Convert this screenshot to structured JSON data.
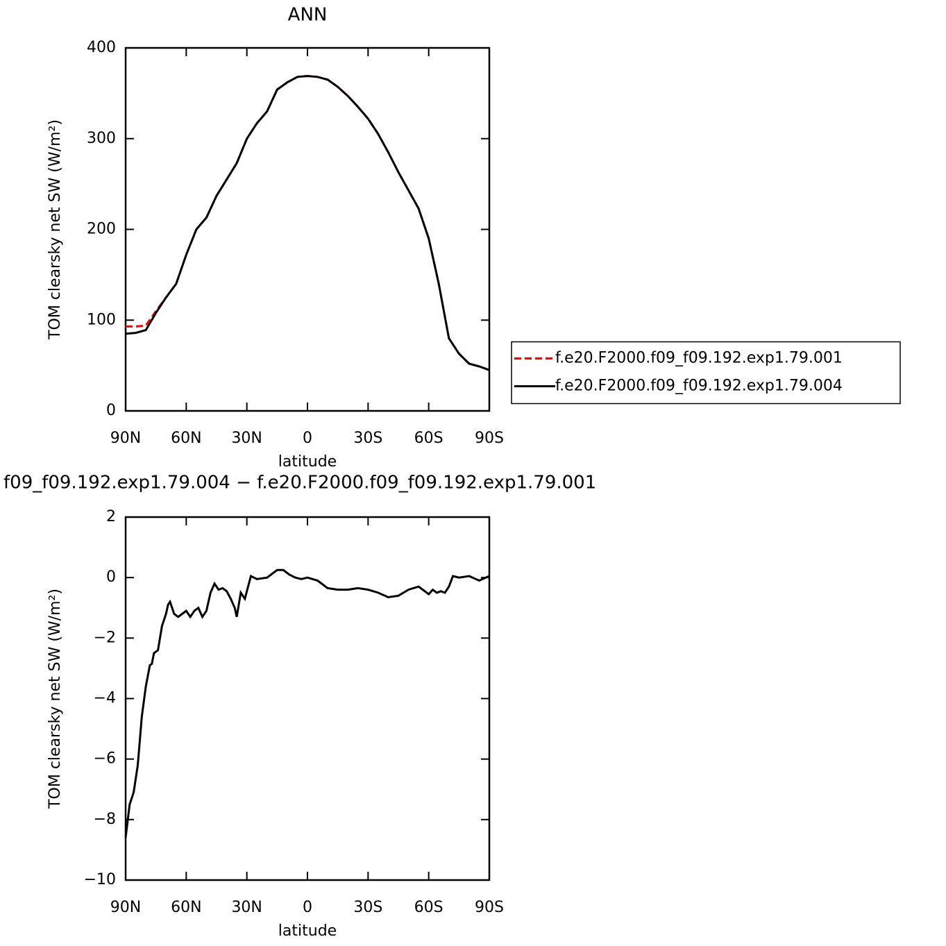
{
  "chart_data": [
    {
      "type": "line",
      "title": "ANN",
      "x_label": "latitude",
      "y_label": "TOM clearsky net SW (W/m²)",
      "x": [
        90,
        85,
        80,
        75,
        70,
        65,
        60,
        55,
        50,
        45,
        40,
        35,
        30,
        25,
        20,
        15,
        10,
        5,
        0,
        -5,
        -10,
        -15,
        -20,
        -25,
        -30,
        -35,
        -40,
        -45,
        -50,
        -55,
        -60,
        -65,
        -70,
        -75,
        -80,
        -85,
        -90
      ],
      "xlim": [
        90,
        -90
      ],
      "xticks": [
        {
          "value": 90,
          "label": "90N"
        },
        {
          "value": 60,
          "label": "60N"
        },
        {
          "value": 30,
          "label": "30N"
        },
        0,
        {
          "value": -30,
          "label": "30S"
        },
        {
          "value": -60,
          "label": "60S"
        },
        {
          "value": -90,
          "label": "90S"
        }
      ],
      "ylim": [
        0,
        400
      ],
      "yticks": [
        0,
        100,
        200,
        300,
        400
      ],
      "legend": "right",
      "series": [
        {
          "name": "f.e20.F2000.f09_f09.192.exp1.79.001",
          "color": "#ff0000",
          "dash": "dashed",
          "values": [
            93,
            93,
            94,
            110,
            125,
            140,
            172,
            200,
            213,
            237,
            255,
            273,
            300,
            317,
            330,
            354,
            362,
            368,
            369,
            368,
            365,
            357,
            347,
            335,
            322,
            305,
            285,
            263,
            243,
            223,
            190,
            140,
            80,
            63,
            52,
            49,
            45
          ]
        },
        {
          "name": "f.e20.F2000.f09_f09.192.exp1.79.004",
          "color": "#000000",
          "dash": "solid",
          "values": [
            85,
            86,
            89,
            108,
            125,
            140,
            172,
            200,
            213,
            237,
            255,
            273,
            300,
            317,
            330,
            354,
            362,
            368,
            369,
            368,
            365,
            357,
            347,
            335,
            322,
            305,
            285,
            263,
            243,
            223,
            190,
            140,
            80,
            63,
            52,
            49,
            45
          ]
        }
      ]
    },
    {
      "type": "line",
      "title": "f09_f09.192.exp1.79.004 − f.e20.F2000.f09_f09.192.exp1.79.001",
      "x_label": "latitude",
      "y_label": "TOM clearsky net SW (W/m²)",
      "x": [
        90,
        88,
        86,
        84,
        82,
        80,
        78,
        77,
        76,
        74,
        72,
        70,
        69,
        68,
        66,
        64,
        62,
        60,
        58,
        56,
        54,
        52,
        50,
        48,
        46,
        44,
        42,
        40,
        38,
        36,
        35,
        33,
        31,
        29,
        28,
        25,
        20,
        15,
        12,
        9,
        6,
        3,
        0,
        -5,
        -10,
        -15,
        -20,
        -25,
        -30,
        -35,
        -40,
        -45,
        -50,
        -55,
        -60,
        -62,
        -64,
        -66,
        -68,
        -70,
        -72,
        -75,
        -80,
        -85,
        -90
      ],
      "xlim": [
        90,
        -90
      ],
      "xticks": [
        {
          "value": 90,
          "label": "90N"
        },
        {
          "value": 60,
          "label": "60N"
        },
        {
          "value": 30,
          "label": "30N"
        },
        0,
        {
          "value": -30,
          "label": "30S"
        },
        {
          "value": -60,
          "label": "60S"
        },
        {
          "value": -90,
          "label": "90S"
        }
      ],
      "ylim": [
        -10,
        2
      ],
      "yticks": [
        {
          "value": -10,
          "label": "−10"
        },
        {
          "value": -8,
          "label": "−8"
        },
        {
          "value": -6,
          "label": "−6"
        },
        {
          "value": -4,
          "label": "−4"
        },
        {
          "value": -2,
          "label": "−2"
        },
        0,
        2
      ],
      "series": [
        {
          "color": "#000000",
          "dash": "solid",
          "values": [
            -8.6,
            -7.5,
            -7.1,
            -6.2,
            -4.6,
            -3.6,
            -2.9,
            -2.85,
            -2.5,
            -2.4,
            -1.6,
            -1.2,
            -0.9,
            -0.8,
            -1.2,
            -1.3,
            -1.2,
            -1.1,
            -1.3,
            -1.1,
            -1.0,
            -1.3,
            -1.1,
            -0.5,
            -0.2,
            -0.4,
            -0.35,
            -0.45,
            -0.7,
            -1.0,
            -1.3,
            -0.5,
            -0.7,
            -0.2,
            0.05,
            -0.05,
            0.0,
            0.25,
            0.25,
            0.1,
            0.0,
            -0.05,
            0.0,
            -0.1,
            -0.35,
            -0.4,
            -0.4,
            -0.35,
            -0.4,
            -0.5,
            -0.65,
            -0.6,
            -0.4,
            -0.3,
            -0.55,
            -0.4,
            -0.5,
            -0.45,
            -0.5,
            -0.3,
            0.05,
            0.0,
            0.05,
            -0.1,
            0.05
          ]
        }
      ]
    }
  ]
}
